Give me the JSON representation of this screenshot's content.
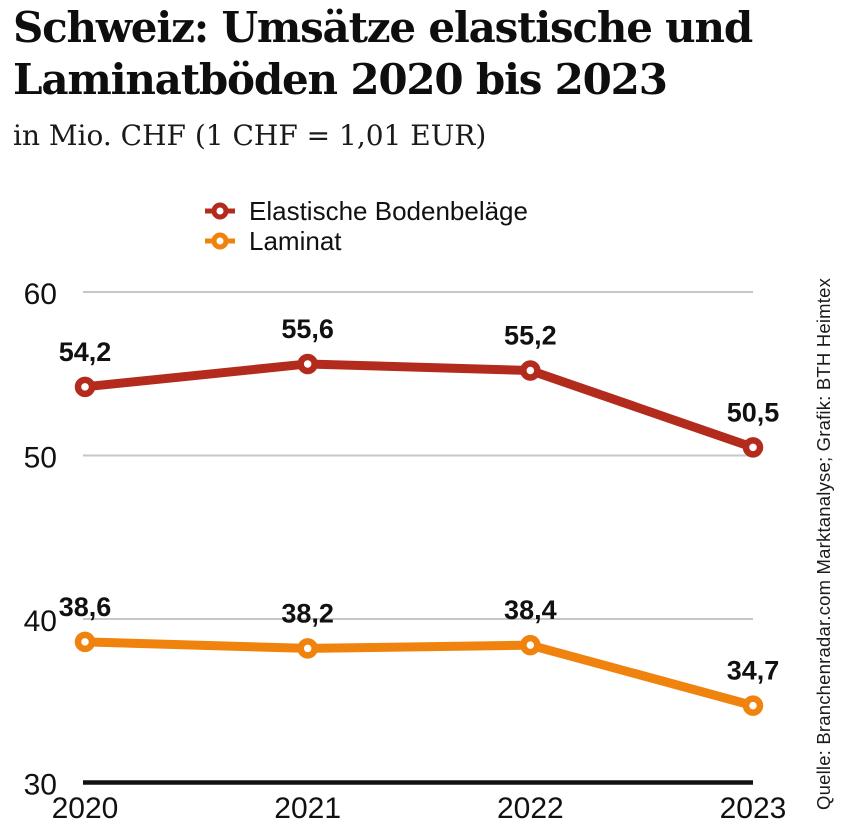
{
  "header": {
    "title_line1": "Schweiz: Umsätze elastische und",
    "title_line2": "Laminatböden 2020 bis 2023",
    "subtitle": "in Mio. CHF (1 CHF = 1,01 EUR)"
  },
  "legend": {
    "items": [
      {
        "label": "Elastische Bodenbeläge",
        "color": "#b32b1d"
      },
      {
        "label": "Laminat",
        "color": "#f0820e"
      }
    ]
  },
  "chart_data": {
    "type": "line",
    "title": "Schweiz: Umsätze elastische und Laminatböden 2020 bis 2023",
    "subtitle": "in Mio. CHF (1 CHF = 1,01 EUR)",
    "categories": [
      "2020",
      "2021",
      "2022",
      "2023"
    ],
    "series": [
      {
        "name": "Elastische Bodenbeläge",
        "color": "#b32b1d",
        "values": [
          54.2,
          55.6,
          55.2,
          50.5
        ],
        "labels": [
          "54,2",
          "55,6",
          "55,2",
          "50,5"
        ]
      },
      {
        "name": "Laminat",
        "color": "#f0820e",
        "values": [
          38.6,
          38.2,
          38.4,
          34.7
        ],
        "labels": [
          "38,6",
          "38,2",
          "38,4",
          "34,7"
        ]
      }
    ],
    "xlabel": "",
    "ylabel": "",
    "y_ticks": [
      30,
      40,
      50,
      60
    ],
    "ylim": [
      30,
      62
    ],
    "grid": true,
    "gridline_color": "#c7c7c7",
    "axis_color": "#111111",
    "marker": "ring",
    "legend_position": "top-center"
  },
  "source": "Quelle: Branchenradar.com Marktanalyse; Grafik: BTH Heimtex"
}
